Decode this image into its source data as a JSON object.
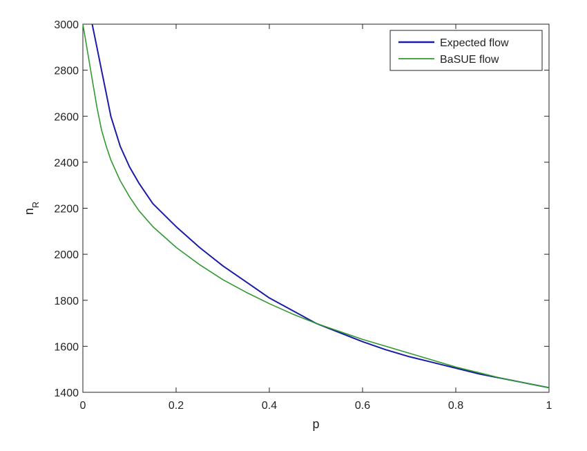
{
  "chart_data": {
    "type": "line",
    "title": "",
    "xlabel": "p",
    "ylabel_main": "n",
    "ylabel_sub": "R",
    "xlim": [
      0,
      1
    ],
    "ylim": [
      1400,
      3000
    ],
    "x_ticks": [
      0,
      0.2,
      0.4,
      0.6,
      0.8,
      1
    ],
    "x_tick_labels": [
      "0",
      "0.2",
      "0.4",
      "0.6",
      "0.8",
      "1"
    ],
    "y_ticks": [
      1400,
      1600,
      1800,
      2000,
      2200,
      2400,
      2600,
      2800,
      3000
    ],
    "y_tick_labels": [
      "1400",
      "1600",
      "1800",
      "2000",
      "2200",
      "2400",
      "2600",
      "2800",
      "3000"
    ],
    "grid": false,
    "legend_position": "top-right",
    "series": [
      {
        "name": "Expected flow",
        "color": "#1a1aa6",
        "x": [
          0.02,
          0.03,
          0.04,
          0.05,
          0.06,
          0.08,
          0.1,
          0.12,
          0.15,
          0.2,
          0.25,
          0.3,
          0.35,
          0.4,
          0.45,
          0.5,
          0.55,
          0.6,
          0.65,
          0.7,
          0.75,
          0.8,
          0.85,
          0.9,
          0.95,
          1.0
        ],
        "y": [
          3000,
          2900,
          2800,
          2700,
          2600,
          2470,
          2380,
          2310,
          2220,
          2120,
          2030,
          1950,
          1880,
          1810,
          1755,
          1700,
          1660,
          1620,
          1585,
          1555,
          1530,
          1505,
          1480,
          1460,
          1440,
          1420
        ]
      },
      {
        "name": "BaSUE flow",
        "color": "#2e9a2e",
        "x": [
          0.0,
          0.01,
          0.02,
          0.03,
          0.04,
          0.05,
          0.06,
          0.08,
          0.1,
          0.12,
          0.15,
          0.2,
          0.25,
          0.3,
          0.35,
          0.4,
          0.45,
          0.5,
          0.55,
          0.6,
          0.65,
          0.7,
          0.75,
          0.8,
          0.85,
          0.9,
          0.95,
          1.0
        ],
        "y": [
          3000,
          2880,
          2760,
          2640,
          2540,
          2470,
          2410,
          2320,
          2250,
          2190,
          2120,
          2030,
          1955,
          1890,
          1835,
          1785,
          1740,
          1700,
          1665,
          1630,
          1600,
          1570,
          1540,
          1510,
          1485,
          1460,
          1440,
          1420
        ]
      }
    ]
  }
}
